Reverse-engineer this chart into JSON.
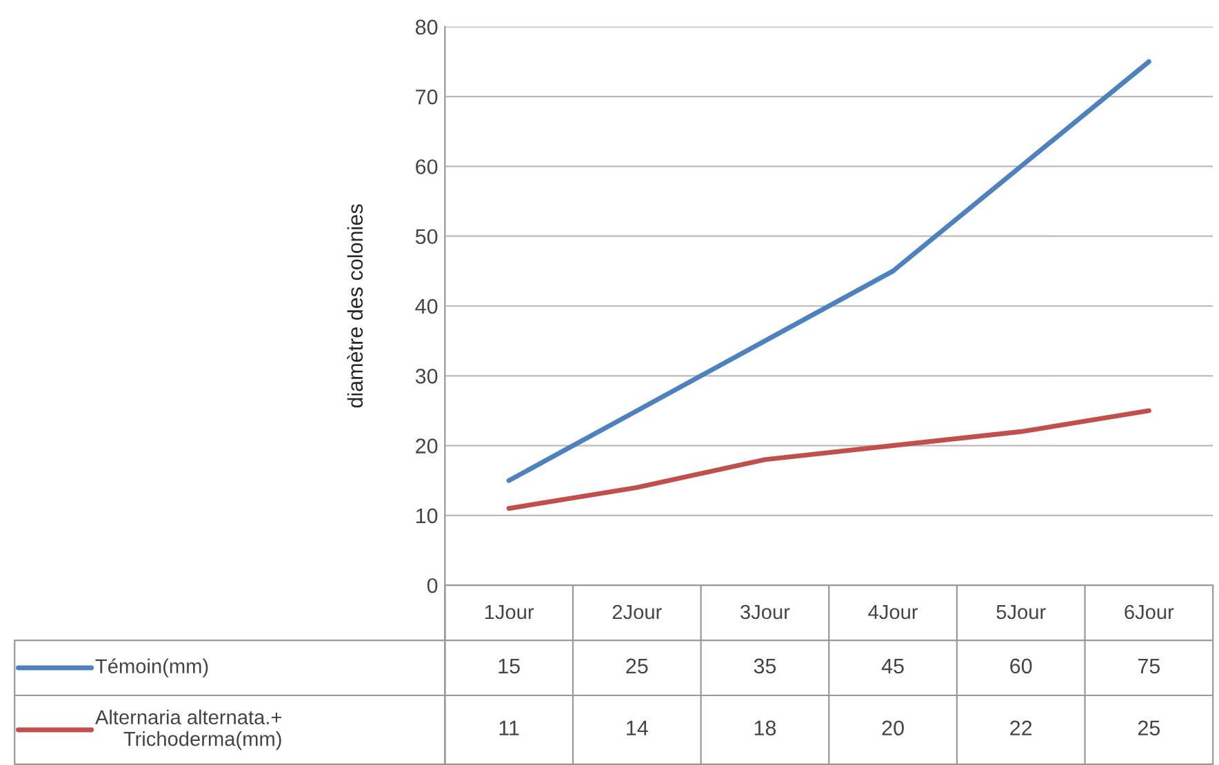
{
  "chart_data": {
    "type": "line",
    "ylabel": "diamètre des colonies",
    "categories": [
      "1Jour",
      "2Jour",
      "3Jour",
      "4Jour",
      "5Jour",
      "6Jour"
    ],
    "series": [
      {
        "name": "Témoin(mm)",
        "color": "#4f81bd",
        "values": [
          15,
          25,
          35,
          45,
          60,
          75
        ]
      },
      {
        "name": "Alternaria alternata.+\nTrichoderma(mm)",
        "color": "#c0504d",
        "values": [
          11,
          14,
          18,
          20,
          22,
          25
        ]
      }
    ],
    "ylim": [
      0,
      80
    ],
    "yticks": [
      0,
      10,
      20,
      30,
      40,
      50,
      60,
      70,
      80
    ],
    "grid": "y",
    "legend": "bottom",
    "data_labels": true
  }
}
